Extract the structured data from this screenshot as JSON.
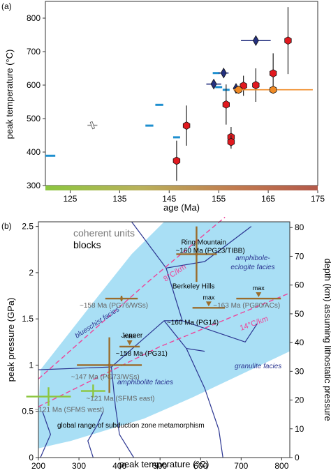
{
  "panel_a": {
    "label": "(a)",
    "colors": {
      "cyan": "#1e8fcf",
      "navy": "#24307f",
      "red": "#e1191f",
      "orange": "#f08a24",
      "gray": "#8a8a8a"
    },
    "chart_data": {
      "type": "scatter",
      "xlabel": "age (Ma)",
      "ylabel": "peak temperature (°C)",
      "xlim": [
        120,
        175
      ],
      "ylim": [
        300,
        850
      ],
      "xticks": [
        "125",
        "135",
        "145",
        "155",
        "165",
        "175"
      ],
      "yticks": [
        "300",
        "400",
        "500",
        "600",
        "700",
        "800"
      ],
      "age_color_bar": [
        "#8cc63f",
        "#b9b15a",
        "#c17a4f",
        "#b3594a"
      ],
      "series": [
        {
          "marker": "bar",
          "color": "#1e8fcf",
          "points": [
            {
              "x": 121,
              "y": 389,
              "xerr": 1
            },
            {
              "x": 141,
              "y": 479,
              "xerr": 0.8
            },
            {
              "x": 143,
              "y": 541,
              "xerr": 0.8
            },
            {
              "x": 146.5,
              "y": 444,
              "xerr": 0.7
            },
            {
              "x": 154.5,
              "y": 636,
              "xerr": 0.7
            },
            {
              "x": 155,
              "y": 594,
              "xerr": 0.7
            },
            {
              "x": 156.5,
              "y": 586,
              "xerr": 0.7
            }
          ]
        },
        {
          "marker": "diamond",
          "color": "#24307f",
          "points": [
            {
              "x": 154,
              "y": 603,
              "xerr": 1.5
            },
            {
              "x": 156,
              "y": 636,
              "xerr": 1
            },
            {
              "x": 158.5,
              "y": 590,
              "xerr": 0.5
            },
            {
              "x": 162.5,
              "y": 733,
              "xerr": 3
            }
          ]
        },
        {
          "marker": "hexagon",
          "color": "#e1191f",
          "points": [
            {
              "x": 146.5,
              "y": 374,
              "yerr": 60
            },
            {
              "x": 148.5,
              "y": 479,
              "yerr": 60
            },
            {
              "x": 156.5,
              "y": 542,
              "yerr": 60
            },
            {
              "x": 157.5,
              "y": 445,
              "yerr": 30
            },
            {
              "x": 157.5,
              "y": 430,
              "yerr": 20
            },
            {
              "x": 160,
              "y": 598,
              "yerr": 30
            },
            {
              "x": 162.5,
              "y": 600,
              "yerr": 50
            },
            {
              "x": 166,
              "y": 635,
              "yerr": 60
            },
            {
              "x": 169,
              "y": 733,
              "yerr": 100
            }
          ]
        },
        {
          "marker": "hexagon",
          "color": "#f08a24",
          "points": [
            {
              "x": 159,
              "y": 586,
              "xerr": 1
            },
            {
              "x": 166,
              "y": 586,
              "xerr": 8
            }
          ]
        },
        {
          "marker": "open-rect",
          "color": "#8a8a8a",
          "points": [
            {
              "x": 129.5,
              "y": 480,
              "xerr": 1
            }
          ]
        }
      ]
    }
  },
  "panel_b": {
    "label": "(b)",
    "colors": {
      "facies_line": "#2b3591",
      "field_fill": "#a9dff5",
      "gradient": "#ee4499",
      "brown": "#9a6c2c",
      "green": "#8cc63f"
    },
    "chart_data": {
      "type": "scatter",
      "xlabel": "peak temperature (°C)",
      "ylabel": "peak pressure (GPa)",
      "ylabel_right": "depth (km) assuming lithostatic pressure",
      "xlim": [
        200,
        820
      ],
      "ylim": [
        0,
        2.55
      ],
      "xticks": [
        "200",
        "300",
        "400",
        "500",
        "600",
        "700",
        "800"
      ],
      "yticks": [
        "0",
        "0.5",
        "1",
        "1.5",
        "2",
        "2.5"
      ],
      "yticks_right": [
        "0",
        "10",
        "20",
        "30",
        "40",
        "50",
        "60",
        "70",
        "80"
      ],
      "legend": {
        "coherent": "coherent units",
        "blocks": "blocks"
      },
      "gradients": [
        "8°C/km",
        "14°C/km"
      ],
      "facies_labels": [
        "blueschist facies",
        "amphibole-eclogite facies",
        "amphibolite facies",
        "granulite facies",
        "global range of subduction zone metamorphism"
      ],
      "brown_points": [
        {
          "x": 590,
          "y": 2.2,
          "xerr": 50,
          "yerr": 0.3,
          "label": "~160 Ma (PG23/TIBB)",
          "sublabel": "Ring Mountain",
          "max": false
        },
        {
          "x": 405,
          "y": 1.72,
          "xerr": 40,
          "yerr": 0.03,
          "label": "~158 Ma (PG76/WSs)",
          "max": false
        },
        {
          "x": 620,
          "y": 1.62,
          "xerr": 40,
          "yerr": 0,
          "label": "~160 Ma (PG14)",
          "sublabel": "Berkeley Hills",
          "max": true
        },
        {
          "x": 743,
          "y": 1.72,
          "xerr": 55,
          "yerr": 0,
          "label": "~163 Ma (PG80/ACs)",
          "max": true
        },
        {
          "x": 425,
          "y": 1.2,
          "xerr": 25,
          "yerr": 0,
          "label": "~158 Ma (PG31)",
          "sublabel": "Jenner",
          "max": true
        },
        {
          "x": 375,
          "y": 1.0,
          "xerr": 80,
          "yerr": 0.3,
          "label": "~147 Ma (PG73/WSs)",
          "max": false
        }
      ],
      "green_points": [
        {
          "x": 335,
          "y": 0.72,
          "xerr": 30,
          "yerr": 0.07,
          "label": "~121 Ma (SFMS east)"
        },
        {
          "x": 225,
          "y": 0.66,
          "xerr": 55,
          "yerr": 0.1,
          "label": "~121 Ma (SFMS west)"
        }
      ]
    }
  }
}
